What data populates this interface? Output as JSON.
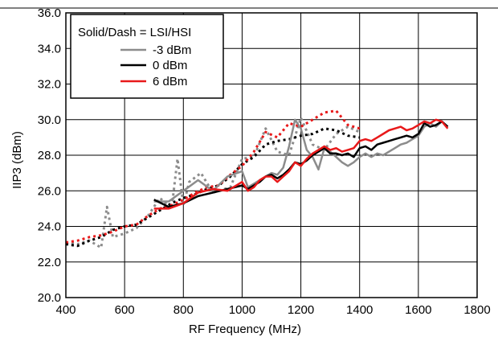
{
  "chart_data": {
    "type": "line",
    "xlabel": "RF Frequency (MHz)",
    "ylabel": "IIP3 (dBm)",
    "xlim": [
      400,
      1800
    ],
    "ylim": [
      20.0,
      36.0
    ],
    "xticks": [
      "400",
      "600",
      "800",
      "1000",
      "1200",
      "1400",
      "1600",
      "1800"
    ],
    "yticks": [
      "20.0",
      "22.0",
      "24.0",
      "26.0",
      "28.0",
      "30.0",
      "32.0",
      "34.0",
      "36.0"
    ],
    "grid": true,
    "legend": {
      "title": "Solid/Dash = LSI/HSI",
      "placement": "top-left",
      "entries": [
        "-3 dBm",
        "0 dBm",
        "6 dBm"
      ]
    },
    "series": [
      {
        "name": "-3 dBm",
        "style": "solid",
        "color": "#8c8c8c",
        "x": [
          700,
          750,
          800,
          850,
          900,
          950,
          1000,
          1020,
          1040,
          1060,
          1080,
          1100,
          1120,
          1140,
          1160,
          1180,
          1200,
          1220,
          1240,
          1260,
          1280,
          1300,
          1320,
          1340,
          1360,
          1380,
          1400,
          1420,
          1440,
          1460,
          1480,
          1500,
          1520,
          1540,
          1560,
          1580,
          1600,
          1620,
          1640,
          1660,
          1680,
          1700
        ],
        "y": [
          25.4,
          25.4,
          26.0,
          26.6,
          26.0,
          26.8,
          27.1,
          26.2,
          26.4,
          26.6,
          26.8,
          27.0,
          26.9,
          27.3,
          28.5,
          30.0,
          29.5,
          28.3,
          27.9,
          27.2,
          28.4,
          28.2,
          27.9,
          27.6,
          27.4,
          27.6,
          27.9,
          28.1,
          27.9,
          28.1,
          28.0,
          28.2,
          28.4,
          28.6,
          28.7,
          28.9,
          29.1,
          29.6,
          29.8,
          29.6,
          29.9,
          29.6
        ]
      },
      {
        "name": "0 dBm",
        "style": "solid",
        "color": "#000000",
        "x": [
          700,
          750,
          800,
          850,
          900,
          950,
          1000,
          1020,
          1040,
          1060,
          1080,
          1100,
          1120,
          1140,
          1160,
          1180,
          1200,
          1220,
          1240,
          1260,
          1280,
          1300,
          1320,
          1340,
          1360,
          1380,
          1400,
          1420,
          1440,
          1460,
          1480,
          1500,
          1520,
          1540,
          1560,
          1580,
          1600,
          1620,
          1640,
          1660,
          1680,
          1700
        ],
        "y": [
          25.5,
          25.1,
          25.3,
          25.7,
          25.9,
          26.1,
          26.3,
          26.1,
          26.3,
          26.5,
          26.8,
          26.9,
          26.7,
          26.9,
          27.2,
          27.6,
          27.5,
          27.7,
          28.0,
          28.2,
          28.4,
          28.1,
          28.1,
          28.0,
          28.1,
          27.9,
          28.4,
          28.5,
          28.3,
          28.6,
          28.7,
          28.8,
          28.9,
          29.0,
          29.1,
          29.0,
          29.2,
          29.8,
          29.6,
          29.7,
          29.9,
          29.6
        ]
      },
      {
        "name": "6 dBm",
        "style": "solid",
        "color": "#e8191a",
        "x": [
          700,
          750,
          800,
          850,
          900,
          950,
          1000,
          1020,
          1040,
          1060,
          1080,
          1100,
          1120,
          1140,
          1160,
          1180,
          1200,
          1220,
          1240,
          1260,
          1280,
          1300,
          1320,
          1340,
          1360,
          1380,
          1400,
          1420,
          1440,
          1460,
          1480,
          1500,
          1520,
          1540,
          1560,
          1580,
          1600,
          1620,
          1640,
          1660,
          1680,
          1700
        ],
        "y": [
          25.0,
          25.0,
          25.3,
          25.9,
          26.1,
          26.0,
          26.5,
          26.0,
          26.2,
          26.6,
          26.8,
          26.8,
          26.5,
          26.8,
          27.1,
          27.6,
          27.4,
          27.8,
          28.1,
          28.3,
          28.5,
          28.3,
          28.4,
          28.2,
          28.3,
          28.4,
          28.8,
          28.9,
          28.8,
          29.0,
          29.2,
          29.4,
          29.5,
          29.6,
          29.4,
          29.5,
          29.7,
          29.9,
          29.8,
          30.0,
          29.9,
          29.5
        ]
      },
      {
        "name": "-3 dBm",
        "style": "dash",
        "color": "#8c8c8c",
        "x": [
          400,
          440,
          480,
          520,
          540,
          560,
          600,
          640,
          680,
          720,
          760,
          780,
          800,
          820,
          860,
          900,
          960,
          1000,
          1040,
          1080,
          1120,
          1160,
          1200,
          1240,
          1280,
          1320,
          1360,
          1400
        ],
        "y": [
          23.1,
          23.0,
          23.2,
          22.8,
          25.1,
          23.4,
          23.6,
          23.9,
          24.6,
          25.6,
          25.0,
          27.8,
          25.2,
          26.5,
          27.0,
          25.9,
          26.2,
          27.8,
          27.9,
          29.5,
          28.2,
          28.0,
          30.1,
          28.6,
          28.3,
          29.2,
          29.6,
          29.3
        ]
      },
      {
        "name": "0 dBm",
        "style": "dash",
        "color": "#000000",
        "x": [
          400,
          440,
          480,
          520,
          560,
          600,
          640,
          680,
          720,
          760,
          800,
          840,
          880,
          920,
          960,
          1000,
          1040,
          1080,
          1120,
          1160,
          1200,
          1240,
          1280,
          1320,
          1360,
          1400
        ],
        "y": [
          23.0,
          22.9,
          23.2,
          23.4,
          23.8,
          24.0,
          24.1,
          24.5,
          24.9,
          25.3,
          25.6,
          25.8,
          26.1,
          26.3,
          26.8,
          27.5,
          27.9,
          28.6,
          28.8,
          28.9,
          29.1,
          29.2,
          29.5,
          29.4,
          29.1,
          29.0
        ]
      },
      {
        "name": "6 dBm",
        "style": "dash",
        "color": "#e8191a",
        "x": [
          400,
          440,
          480,
          520,
          560,
          600,
          640,
          680,
          720,
          760,
          800,
          840,
          880,
          920,
          960,
          1000,
          1040,
          1080,
          1120,
          1160,
          1200,
          1240,
          1280,
          1320,
          1360,
          1400
        ],
        "y": [
          23.1,
          23.2,
          23.4,
          23.5,
          23.7,
          24.0,
          24.1,
          24.6,
          25.0,
          25.2,
          25.5,
          25.9,
          26.2,
          26.3,
          26.9,
          27.4,
          28.2,
          29.3,
          29.0,
          29.8,
          29.6,
          30.0,
          30.4,
          30.5,
          29.7,
          29.5
        ]
      }
    ]
  }
}
